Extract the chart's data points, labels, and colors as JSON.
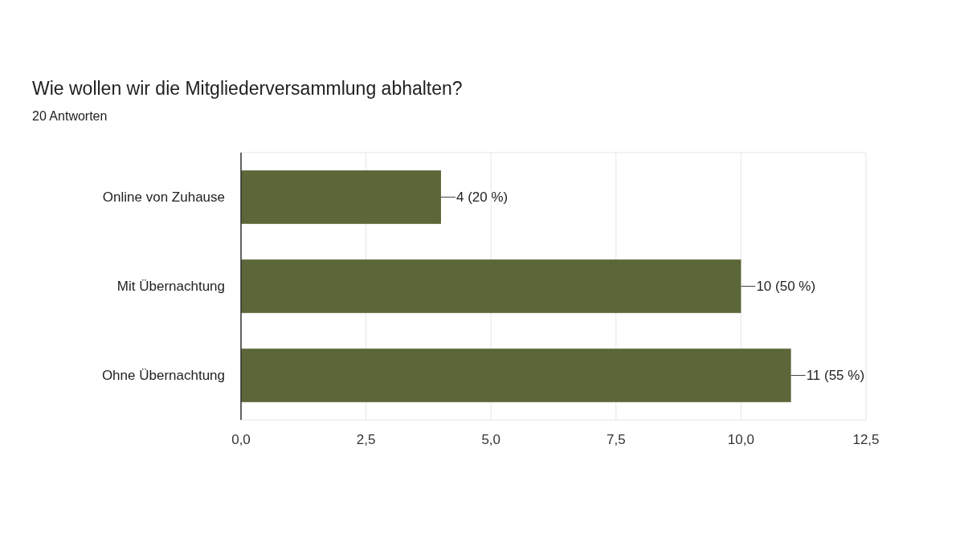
{
  "chart_data": {
    "type": "bar",
    "orientation": "horizontal",
    "title": "Wie wollen wir die Mitgliederversammlung abhalten?",
    "subtitle": "20 Antworten",
    "categories": [
      "Online von Zuhause",
      "Mit Übernachtung",
      "Ohne Übernachtung"
    ],
    "values": [
      4,
      10,
      11
    ],
    "value_labels": [
      "4 (20 %)",
      "10 (50 %)",
      "11 (55 %)"
    ],
    "color": "#5b6639",
    "xlim": [
      0,
      12.5
    ],
    "xticks": [
      {
        "value": 0,
        "label": "0,0"
      },
      {
        "value": 2.5,
        "label": "2,5"
      },
      {
        "value": 5,
        "label": "5,0"
      },
      {
        "value": 7.5,
        "label": "7,5"
      },
      {
        "value": 10,
        "label": "10,0"
      },
      {
        "value": 12.5,
        "label": "12,5"
      }
    ],
    "grid": "x"
  }
}
